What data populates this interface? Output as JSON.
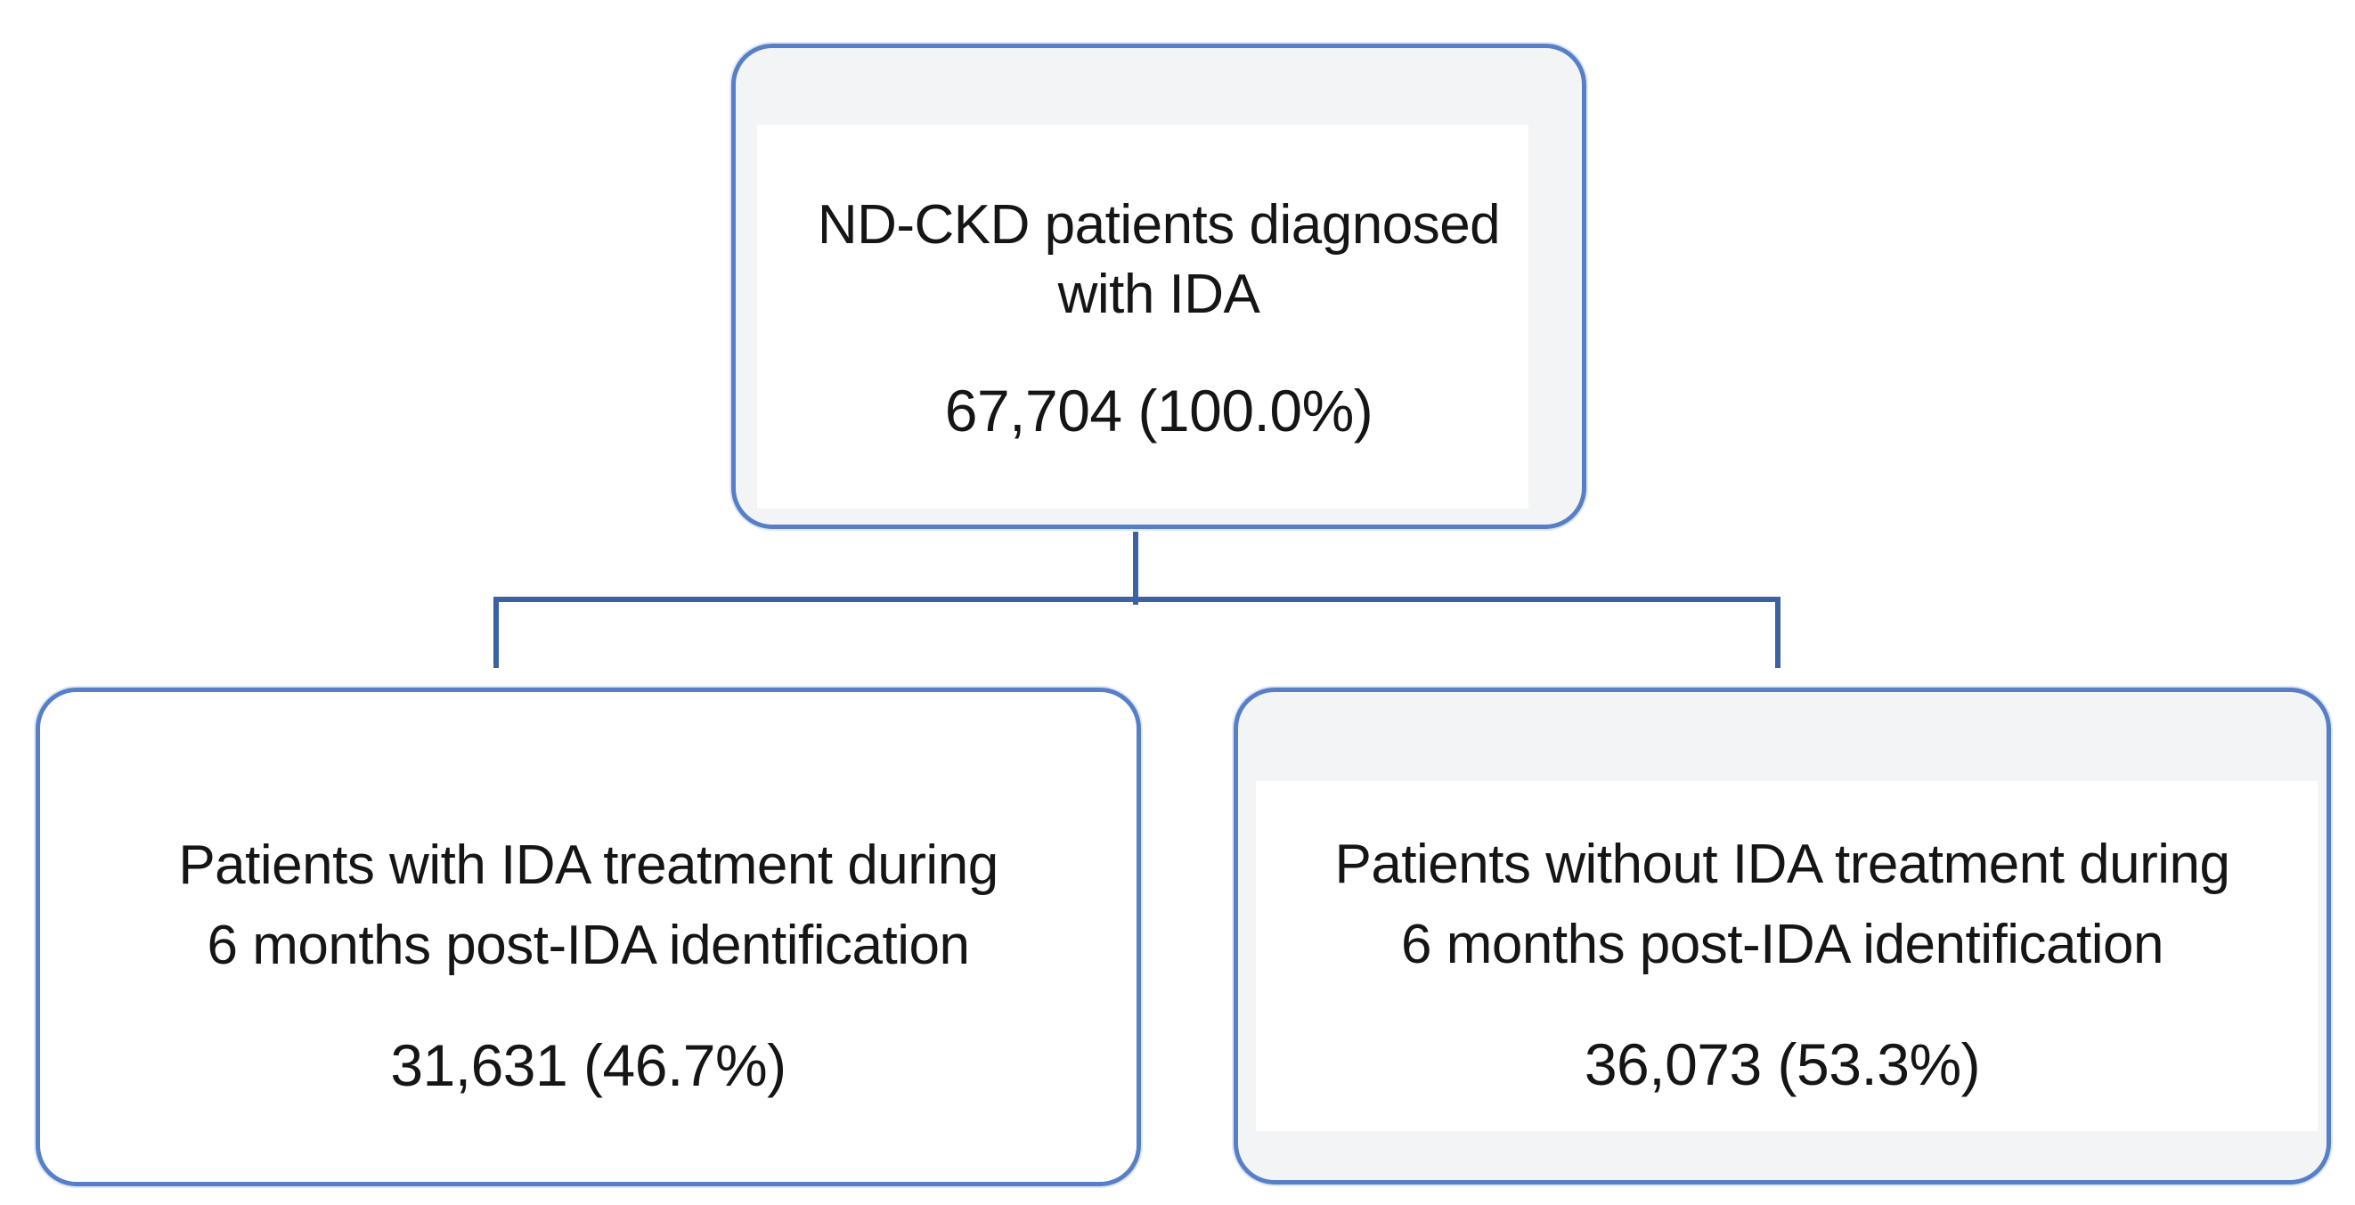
{
  "colors": {
    "box_border": "#577fc8",
    "connector": "#3a62a4",
    "node_fill_gray": "#f3f4f5",
    "node_fill_white": "#ffffff",
    "text": "#151515"
  },
  "flowchart": {
    "root": {
      "line1": "ND-CKD patients diagnosed",
      "line2": "with IDA",
      "value": "67,704 (100.0%)"
    },
    "treated": {
      "line1": "Patients with IDA treatment during",
      "line2": "6 months post-IDA identification",
      "value": "31,631 (46.7%)"
    },
    "untreated": {
      "line1": "Patients without IDA treatment during",
      "line2": "6 months post-IDA identification",
      "value": "36,073 (53.3%)"
    }
  }
}
